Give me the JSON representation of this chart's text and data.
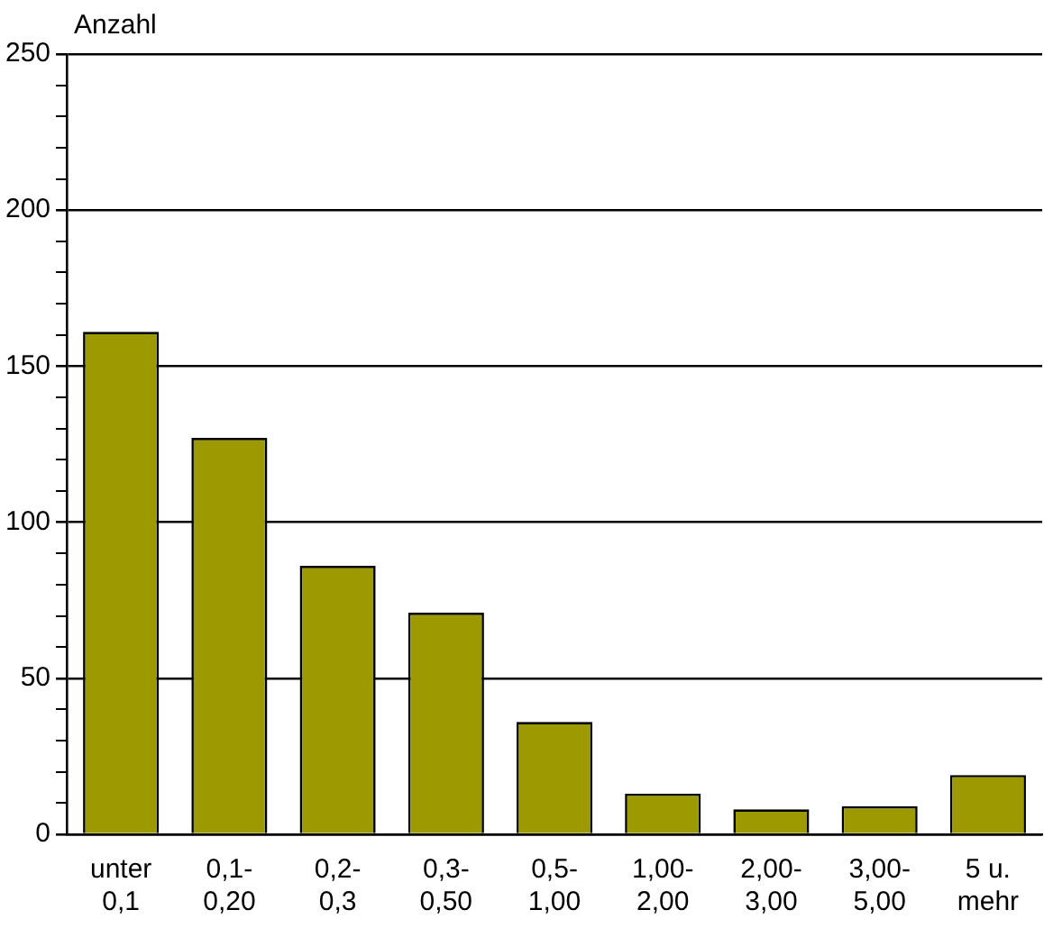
{
  "chart_data": {
    "type": "bar",
    "ylabel": "Anzahl",
    "categories": [
      "unter 0,1",
      "0,1-0,20",
      "0,2-0,3",
      "0,3-0,50",
      "0,5-1,00",
      "1,00-2,00",
      "2,00-3,00",
      "3,00-5,00",
      "5 u. mehr"
    ],
    "values": [
      161,
      127,
      86,
      71,
      36,
      13,
      8,
      9,
      19
    ],
    "color": "#9c9a00",
    "ylim": [
      0,
      250
    ],
    "yticks": [
      0,
      {
        "value": 10,
        "label": null
      },
      {
        "value": 20,
        "label": null
      },
      {
        "value": 30,
        "label": null
      },
      {
        "value": 40,
        "label": null
      },
      50,
      {
        "value": 60,
        "label": null
      },
      {
        "value": 70,
        "label": null
      },
      {
        "value": 80,
        "label": null
      },
      {
        "value": 90,
        "label": null
      },
      100,
      {
        "value": 110,
        "label": null
      },
      {
        "value": 120,
        "label": null
      },
      {
        "value": 130,
        "label": null
      },
      {
        "value": 140,
        "label": null
      },
      150,
      {
        "value": 160,
        "label": null
      },
      {
        "value": 170,
        "label": null
      },
      {
        "value": 180,
        "label": null
      },
      {
        "value": 190,
        "label": null
      },
      200,
      {
        "value": 210,
        "label": null
      },
      {
        "value": 220,
        "label": null
      },
      {
        "value": 230,
        "label": null
      },
      {
        "value": 240,
        "label": null
      },
      250
    ],
    "grid": "y",
    "legend": false
  }
}
